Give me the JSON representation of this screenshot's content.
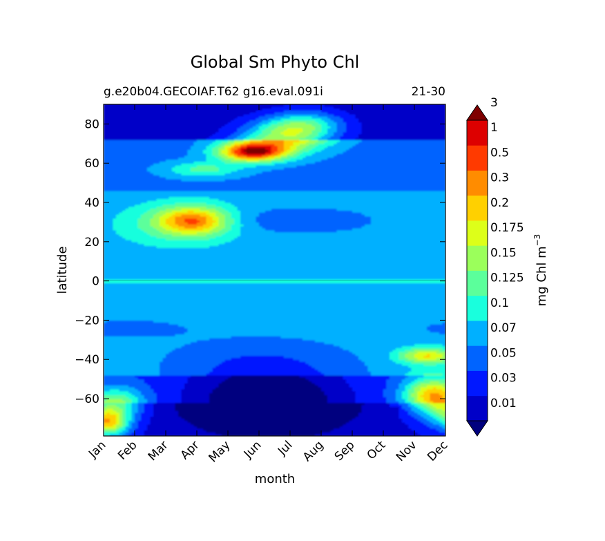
{
  "chart_data": {
    "type": "contourf",
    "title": "Global Sm Phyto Chl",
    "subtitle_left": "g.e20b04.GECOIAF.T62 g16.eval.091i",
    "subtitle_right": "21-30",
    "xlabel": "month",
    "ylabel": "latitude",
    "x_categories": [
      "Jan",
      "Feb",
      "Mar",
      "Apr",
      "May",
      "Jun",
      "Jul",
      "Aug",
      "Sep",
      "Oct",
      "Nov",
      "Dec"
    ],
    "y_ticks": [
      80,
      60,
      40,
      20,
      0,
      -20,
      -40,
      -60
    ],
    "y_tick_labels": [
      "80",
      "60",
      "40",
      "20",
      "0",
      "−20",
      "−40",
      "−60"
    ],
    "ylim": [
      -79,
      90
    ],
    "colorbar": {
      "label": "mg Chl m",
      "label_superscript": "−3",
      "levels": [
        0.01,
        0.03,
        0.05,
        0.07,
        0.1,
        0.125,
        0.15,
        0.175,
        0.2,
        0.3,
        0.5,
        1,
        3
      ],
      "tick_labels": [
        "0.01",
        "0.03",
        "0.05",
        "0.07",
        "0.1",
        "0.125",
        "0.15",
        "0.175",
        "0.2",
        "0.3",
        "0.5",
        "1",
        "3"
      ],
      "colors": [
        "#00007f",
        "#0000c8",
        "#0018ff",
        "#0064ff",
        "#00b0ff",
        "#19ffdd",
        "#5bff9b",
        "#9bff5b",
        "#ddff19",
        "#ffd000",
        "#ff8c00",
        "#ff3a00",
        "#dd0000",
        "#7f0000"
      ],
      "extend": "both"
    },
    "grid": false
  }
}
